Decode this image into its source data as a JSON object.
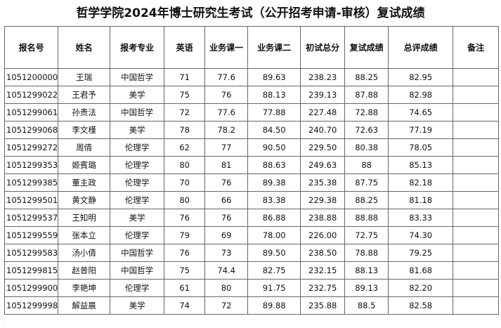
{
  "title": "哲学学院2024年博士研究生考试（公开招考申请-审核）复试成绩",
  "headers": [
    "报名号",
    "姓名",
    "报考专业",
    "英语",
    "业务课一",
    "业务课二",
    "初试总分",
    "复试成绩",
    "总评成绩",
    "备注"
  ],
  "rows": [
    [
      "1051200000",
      "王瑞",
      "中国哲学",
      "71",
      "77.6",
      "89.63",
      "238.23",
      "88.25",
      "82.95",
      ""
    ],
    [
      "1051299022",
      "王君予",
      "美学",
      "75",
      "76",
      "88.13",
      "239.13",
      "87.88",
      "82.98",
      ""
    ],
    [
      "1051299061",
      "孙贵法",
      "中国哲学",
      "72",
      "77.6",
      "77.88",
      "227.48",
      "72.88",
      "74.65",
      ""
    ],
    [
      "1051299068",
      "李文槿",
      "美学",
      "78",
      "78.2",
      "84.50",
      "240.70",
      "72.63",
      "77.19",
      ""
    ],
    [
      "1051299272",
      "周倩",
      "伦理学",
      "62",
      "77",
      "90.50",
      "229.50",
      "80.38",
      "78.05",
      ""
    ],
    [
      "1051299353",
      "姬賓璐",
      "伦理学",
      "80",
      "81",
      "88.63",
      "249.63",
      "88",
      "85.13",
      ""
    ],
    [
      "1051299385",
      "董主政",
      "伦理学",
      "70",
      "76",
      "89.38",
      "235.38",
      "87.75",
      "82.18",
      ""
    ],
    [
      "1051299501",
      "黄文静",
      "伦理学",
      "80",
      "66",
      "83.38",
      "229.38",
      "88.25",
      "81.18",
      ""
    ],
    [
      "1051299537",
      "王知明",
      "美学",
      "76",
      "76",
      "86.88",
      "238.88",
      "88.88",
      "83.33",
      ""
    ],
    [
      "1051299559",
      "张本立",
      "伦理学",
      "79",
      "69",
      "78.00",
      "226.00",
      "72.75",
      "74.30",
      ""
    ],
    [
      "1051299583",
      "汤小倩",
      "中国哲学",
      "76",
      "73",
      "89.50",
      "238.50",
      "78.88",
      "79.25",
      ""
    ],
    [
      "1051299815",
      "赵普阳",
      "中国哲学",
      "75",
      "74.4",
      "82.75",
      "232.15",
      "88.13",
      "81.68",
      ""
    ],
    [
      "1051299900",
      "李艳坤",
      "伦理学",
      "61",
      "80",
      "91.75",
      "232.75",
      "89.13",
      "82.20",
      ""
    ],
    [
      "1051299998",
      "解益晨",
      "美学",
      "74",
      "72",
      "89.88",
      "235.88",
      "88.5",
      "82.58",
      ""
    ]
  ]
}
